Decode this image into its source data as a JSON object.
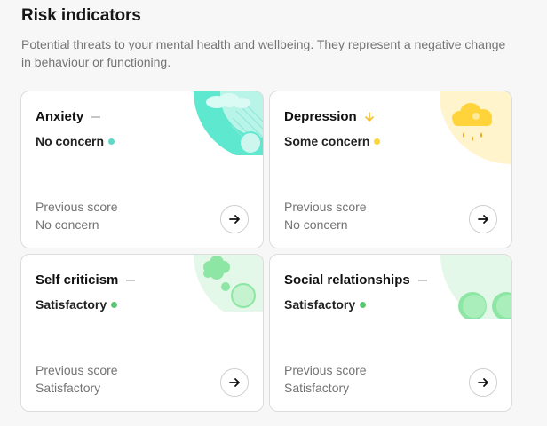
{
  "header": {
    "title": "Risk indicators",
    "subtitle": "Potential threats to your mental health and wellbeing. They represent a negative change in behaviour or functioning."
  },
  "cards": [
    {
      "title": "Anxiety",
      "trend": "dash-icon",
      "status": "No concern",
      "status_color": "#5fd9c6",
      "previous_label": "Previous score",
      "previous_value": "No concern",
      "illustration": "teal-circles-illustration",
      "action_icon": "arrow-right-icon"
    },
    {
      "title": "Depression",
      "trend": "arrow-down-icon",
      "status": "Some concern",
      "status_color": "#ffd43b",
      "previous_label": "Previous score",
      "previous_value": "No concern",
      "illustration": "rain-cloud-illustration",
      "action_icon": "arrow-right-icon"
    },
    {
      "title": "Self criticism",
      "trend": "dash-icon",
      "status": "Satisfactory",
      "status_color": "#58c773",
      "previous_label": "Previous score",
      "previous_value": "Satisfactory",
      "illustration": "thought-bubble-illustration",
      "action_icon": "arrow-right-icon"
    },
    {
      "title": "Social relationships",
      "trend": "dash-icon",
      "status": "Satisfactory",
      "status_color": "#58c773",
      "previous_label": "Previous score",
      "previous_value": "Satisfactory",
      "illustration": "green-circles-illustration",
      "action_icon": "arrow-right-icon"
    }
  ],
  "colors": {
    "trend_neutral": "#b8b8b8",
    "trend_down": "#f2bf2a"
  }
}
